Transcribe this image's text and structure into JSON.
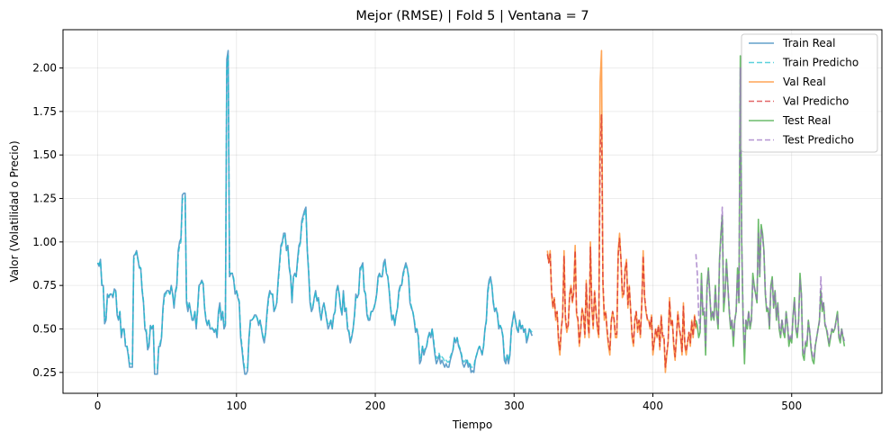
{
  "chart_data": {
    "type": "line",
    "title": "Mejor (RMSE) | Fold 5 | Ventana = 7",
    "xlabel": "Tiempo",
    "ylabel": "Valor (Volatilidad o Precio)",
    "xlim": [
      -25,
      565
    ],
    "ylim": [
      0.13,
      2.22
    ],
    "xticks": [
      0,
      100,
      200,
      300,
      400,
      500
    ],
    "yticks": [
      0.25,
      0.5,
      0.75,
      1.0,
      1.25,
      1.5,
      1.75,
      2.0
    ],
    "ytick_labels": [
      "0.25",
      "0.50",
      "0.75",
      "1.00",
      "1.25",
      "1.50",
      "1.75",
      "2.00"
    ],
    "grid": true,
    "legend_position": "top-right",
    "colors": {
      "train_real": "#1f77b4",
      "train_pred": "#17becf",
      "val_real": "#ff7f0e",
      "val_pred": "#d62728",
      "test_real": "#2ca02c",
      "test_pred": "#9467bd"
    },
    "series": [
      {
        "name": "Train Real",
        "style": "solid",
        "color": "#1f77b4",
        "x_start": 0,
        "values": [
          0.88,
          0.86,
          0.9,
          0.75,
          0.75,
          0.53,
          0.55,
          0.7,
          0.68,
          0.7,
          0.7,
          0.68,
          0.73,
          0.72,
          0.58,
          0.55,
          0.6,
          0.45,
          0.5,
          0.5,
          0.4,
          0.4,
          0.35,
          0.28,
          0.28,
          0.28,
          0.92,
          0.93,
          0.95,
          0.9,
          0.85,
          0.85,
          0.72,
          0.65,
          0.5,
          0.48,
          0.38,
          0.4,
          0.52,
          0.5,
          0.52,
          0.24,
          0.24,
          0.24,
          0.4,
          0.4,
          0.45,
          0.62,
          0.7,
          0.71,
          0.72,
          0.72,
          0.7,
          0.75,
          0.7,
          0.62,
          0.72,
          0.75,
          0.95,
          1.0,
          1.02,
          1.27,
          1.28,
          1.28,
          0.65,
          0.6,
          0.65,
          0.6,
          0.55,
          0.55,
          0.6,
          0.5,
          0.62,
          0.75,
          0.76,
          0.78,
          0.76,
          0.62,
          0.55,
          0.52,
          0.55,
          0.5,
          0.5,
          0.5,
          0.48,
          0.5,
          0.45,
          0.6,
          0.65,
          0.55,
          0.6,
          0.5,
          0.52,
          2.05,
          2.1,
          0.8,
          0.82,
          0.82,
          0.78,
          0.7,
          0.72,
          0.68,
          0.65,
          0.45,
          0.38,
          0.3,
          0.24,
          0.24,
          0.26,
          0.45,
          0.55,
          0.55,
          0.56,
          0.58,
          0.58,
          0.56,
          0.52,
          0.55,
          0.5,
          0.45,
          0.42,
          0.48,
          0.6,
          0.68,
          0.72,
          0.7,
          0.7,
          0.6,
          0.62,
          0.65,
          0.78,
          0.88,
          0.98,
          1.0,
          1.05,
          1.05,
          0.95,
          0.98,
          0.85,
          0.8,
          0.65,
          0.8,
          0.82,
          0.8,
          0.9,
          0.98,
          1.0,
          1.12,
          1.15,
          1.18,
          1.2,
          0.95,
          0.82,
          0.65,
          0.6,
          0.62,
          0.68,
          0.72,
          0.66,
          0.68,
          0.6,
          0.55,
          0.62,
          0.65,
          0.6,
          0.55,
          0.5,
          0.52,
          0.55,
          0.5,
          0.58,
          0.6,
          0.72,
          0.75,
          0.7,
          0.62,
          0.58,
          0.72,
          0.6,
          0.62,
          0.5,
          0.48,
          0.42,
          0.45,
          0.5,
          0.58,
          0.7,
          0.68,
          0.7,
          0.85,
          0.86,
          0.88,
          0.72,
          0.7,
          0.58,
          0.55,
          0.55,
          0.6,
          0.6,
          0.62,
          0.65,
          0.7,
          0.8,
          0.82,
          0.8,
          0.8,
          0.88,
          0.9,
          0.82,
          0.8,
          0.72,
          0.62,
          0.55,
          0.58,
          0.52,
          0.58,
          0.62,
          0.72,
          0.75,
          0.75,
          0.82,
          0.85,
          0.88,
          0.85,
          0.8,
          0.65,
          0.62,
          0.6,
          0.55,
          0.48,
          0.5,
          0.45,
          0.3,
          0.32,
          0.4,
          0.35,
          0.38,
          0.4,
          0.45,
          0.48,
          0.45,
          0.5,
          0.42,
          0.35,
          0.3,
          0.32,
          0.35,
          0.3,
          0.32,
          0.3,
          0.28,
          0.3,
          0.28,
          0.28,
          0.32,
          0.35,
          0.38,
          0.45,
          0.42,
          0.45,
          0.4,
          0.38,
          0.35,
          0.3,
          0.28,
          0.3,
          0.32,
          0.28,
          0.3,
          0.25,
          0.26,
          0.25,
          0.32,
          0.35,
          0.38,
          0.4,
          0.38,
          0.35,
          0.4,
          0.5,
          0.55,
          0.72,
          0.78,
          0.8,
          0.75,
          0.65,
          0.6,
          0.62,
          0.58,
          0.5,
          0.52,
          0.5,
          0.45,
          0.32,
          0.3,
          0.35,
          0.3,
          0.35,
          0.5,
          0.55,
          0.6,
          0.55,
          0.5,
          0.48,
          0.55,
          0.5,
          0.52,
          0.48,
          0.5,
          0.42,
          0.45,
          0.5,
          0.48,
          0.46
        ]
      },
      {
        "name": "Train Predicho",
        "style": "dashed",
        "color": "#17becf",
        "x_start": 0,
        "values": [
          0.88,
          0.87,
          0.89,
          0.76,
          0.74,
          0.55,
          0.56,
          0.69,
          0.69,
          0.7,
          0.7,
          0.69,
          0.72,
          0.72,
          0.6,
          0.56,
          0.6,
          0.47,
          0.5,
          0.5,
          0.42,
          0.41,
          0.36,
          0.3,
          0.3,
          0.3,
          0.9,
          0.92,
          0.94,
          0.9,
          0.86,
          0.85,
          0.73,
          0.66,
          0.52,
          0.5,
          0.4,
          0.42,
          0.52,
          0.51,
          0.52,
          0.27,
          0.27,
          0.27,
          0.4,
          0.42,
          0.46,
          0.6,
          0.68,
          0.7,
          0.71,
          0.72,
          0.7,
          0.74,
          0.7,
          0.64,
          0.7,
          0.74,
          0.92,
          0.98,
          1.0,
          1.24,
          1.26,
          1.26,
          0.68,
          0.62,
          0.64,
          0.6,
          0.56,
          0.56,
          0.6,
          0.52,
          0.6,
          0.74,
          0.75,
          0.77,
          0.76,
          0.63,
          0.56,
          0.53,
          0.55,
          0.51,
          0.51,
          0.5,
          0.49,
          0.5,
          0.47,
          0.58,
          0.63,
          0.56,
          0.6,
          0.52,
          0.53,
          2.0,
          2.07,
          0.82,
          0.82,
          0.82,
          0.79,
          0.72,
          0.72,
          0.69,
          0.66,
          0.47,
          0.4,
          0.32,
          0.27,
          0.27,
          0.28,
          0.44,
          0.53,
          0.55,
          0.56,
          0.57,
          0.58,
          0.56,
          0.53,
          0.55,
          0.51,
          0.46,
          0.44,
          0.48,
          0.58,
          0.66,
          0.71,
          0.7,
          0.7,
          0.61,
          0.62,
          0.65,
          0.76,
          0.86,
          0.96,
          0.99,
          1.03,
          1.04,
          0.96,
          0.97,
          0.86,
          0.81,
          0.67,
          0.79,
          0.81,
          0.8,
          0.88,
          0.96,
          0.99,
          1.1,
          1.13,
          1.16,
          1.18,
          0.96,
          0.84,
          0.67,
          0.62,
          0.63,
          0.67,
          0.71,
          0.67,
          0.68,
          0.61,
          0.56,
          0.61,
          0.64,
          0.61,
          0.56,
          0.52,
          0.53,
          0.55,
          0.51,
          0.57,
          0.6,
          0.7,
          0.74,
          0.7,
          0.63,
          0.59,
          0.7,
          0.61,
          0.62,
          0.52,
          0.49,
          0.44,
          0.46,
          0.5,
          0.57,
          0.68,
          0.68,
          0.7,
          0.83,
          0.85,
          0.87,
          0.73,
          0.7,
          0.6,
          0.56,
          0.56,
          0.6,
          0.6,
          0.62,
          0.65,
          0.7,
          0.78,
          0.81,
          0.8,
          0.8,
          0.86,
          0.88,
          0.83,
          0.8,
          0.73,
          0.63,
          0.56,
          0.58,
          0.53,
          0.58,
          0.62,
          0.7,
          0.74,
          0.75,
          0.8,
          0.84,
          0.86,
          0.85,
          0.8,
          0.67,
          0.63,
          0.6,
          0.56,
          0.5,
          0.5,
          0.46,
          0.33,
          0.34,
          0.4,
          0.37,
          0.39,
          0.4,
          0.45,
          0.47,
          0.46,
          0.5,
          0.44,
          0.37,
          0.33,
          0.34,
          0.36,
          0.33,
          0.34,
          0.33,
          0.31,
          0.32,
          0.31,
          0.31,
          0.34,
          0.36,
          0.38,
          0.44,
          0.43,
          0.45,
          0.41,
          0.39,
          0.36,
          0.32,
          0.31,
          0.32,
          0.33,
          0.3,
          0.31,
          0.28,
          0.28,
          0.28,
          0.33,
          0.35,
          0.38,
          0.4,
          0.39,
          0.36,
          0.4,
          0.49,
          0.54,
          0.7,
          0.76,
          0.78,
          0.75,
          0.66,
          0.61,
          0.62,
          0.59,
          0.51,
          0.52,
          0.5,
          0.46,
          0.34,
          0.32,
          0.35,
          0.32,
          0.36,
          0.48,
          0.54,
          0.58,
          0.55,
          0.51,
          0.49,
          0.54,
          0.51,
          0.52,
          0.49,
          0.5,
          0.44,
          0.46,
          0.5,
          0.49,
          0.48
        ]
      },
      {
        "name": "Val Real",
        "style": "solid",
        "color": "#ff7f0e",
        "x_start": 324,
        "values": [
          0.95,
          0.88,
          0.95,
          0.7,
          0.62,
          0.68,
          0.55,
          0.6,
          0.42,
          0.35,
          0.5,
          0.58,
          0.95,
          0.55,
          0.48,
          0.52,
          0.7,
          0.75,
          0.65,
          0.72,
          0.98,
          0.58,
          0.55,
          0.4,
          0.5,
          0.62,
          0.58,
          0.45,
          0.78,
          0.55,
          0.45,
          1.0,
          0.62,
          0.5,
          0.72,
          0.6,
          0.5,
          0.45,
          1.92,
          2.1,
          0.75,
          0.55,
          0.6,
          0.48,
          0.4,
          0.35,
          0.55,
          0.6,
          0.55,
          0.45,
          0.45,
          0.95,
          1.05,
          0.9,
          0.68,
          0.7,
          0.85,
          0.9,
          0.62,
          0.75,
          0.6,
          0.45,
          0.4,
          0.55,
          0.6,
          0.48,
          0.55,
          0.45,
          0.65,
          0.95,
          0.68,
          0.6,
          0.55,
          0.55,
          0.5,
          0.58,
          0.35,
          0.42,
          0.5,
          0.45,
          0.52,
          0.38,
          0.58,
          0.45,
          0.45,
          0.25,
          0.35,
          0.42,
          0.68,
          0.52,
          0.55,
          0.4,
          0.32,
          0.45,
          0.6,
          0.5,
          0.45,
          0.35,
          0.65,
          0.4,
          0.35,
          0.42,
          0.48,
          0.4,
          0.55,
          0.45,
          0.58,
          0.5
        ]
      },
      {
        "name": "Val Predicho",
        "style": "dashed",
        "color": "#d62728",
        "x_start": 324,
        "values": [
          0.93,
          0.88,
          0.93,
          0.72,
          0.63,
          0.67,
          0.57,
          0.6,
          0.45,
          0.38,
          0.5,
          0.57,
          0.92,
          0.57,
          0.5,
          0.52,
          0.69,
          0.74,
          0.66,
          0.71,
          0.95,
          0.6,
          0.56,
          0.42,
          0.5,
          0.61,
          0.58,
          0.47,
          0.76,
          0.56,
          0.47,
          0.97,
          0.63,
          0.52,
          0.71,
          0.6,
          0.52,
          0.47,
          1.5,
          1.73,
          0.78,
          0.58,
          0.6,
          0.5,
          0.42,
          0.38,
          0.54,
          0.6,
          0.56,
          0.47,
          0.47,
          0.92,
          1.02,
          0.9,
          0.7,
          0.7,
          0.84,
          0.88,
          0.64,
          0.74,
          0.61,
          0.47,
          0.42,
          0.55,
          0.6,
          0.5,
          0.55,
          0.47,
          0.64,
          0.92,
          0.69,
          0.61,
          0.56,
          0.55,
          0.51,
          0.57,
          0.38,
          0.43,
          0.5,
          0.46,
          0.52,
          0.4,
          0.57,
          0.46,
          0.46,
          0.28,
          0.36,
          0.43,
          0.66,
          0.53,
          0.55,
          0.42,
          0.34,
          0.46,
          0.59,
          0.51,
          0.46,
          0.37,
          0.63,
          0.42,
          0.37,
          0.43,
          0.48,
          0.42,
          0.54,
          0.46,
          0.57,
          0.51
        ]
      },
      {
        "name": "Test Real",
        "style": "solid",
        "color": "#2ca02c",
        "x_start": 431,
        "values": [
          0.55,
          0.52,
          0.45,
          0.48,
          0.82,
          0.58,
          0.6,
          0.35,
          0.75,
          0.85,
          0.7,
          0.55,
          0.6,
          0.55,
          0.75,
          0.58,
          0.5,
          0.9,
          1.05,
          1.15,
          0.6,
          0.7,
          0.9,
          0.75,
          0.6,
          0.5,
          0.55,
          0.4,
          0.55,
          0.6,
          0.85,
          0.65,
          2.07,
          1.0,
          0.55,
          0.3,
          0.55,
          0.5,
          0.6,
          0.5,
          0.55,
          0.82,
          0.75,
          0.7,
          0.65,
          1.13,
          0.8,
          1.1,
          1.05,
          0.95,
          0.7,
          0.6,
          0.62,
          0.5,
          0.75,
          0.8,
          0.62,
          0.72,
          0.55,
          0.65,
          0.5,
          0.45,
          0.55,
          0.48,
          0.45,
          0.6,
          0.52,
          0.4,
          0.45,
          0.42,
          0.58,
          0.68,
          0.5,
          0.45,
          0.55,
          0.82,
          0.7,
          0.35,
          0.32,
          0.42,
          0.4,
          0.55,
          0.48,
          0.38,
          0.32,
          0.3,
          0.4,
          0.45,
          0.5,
          0.55,
          0.72,
          0.6,
          0.65,
          0.52,
          0.5,
          0.45,
          0.4,
          0.45,
          0.5,
          0.48,
          0.5,
          0.55,
          0.6,
          0.45,
          0.42,
          0.5,
          0.45,
          0.4
        ]
      },
      {
        "name": "Test Predicho",
        "style": "dashed",
        "color": "#9467bd",
        "x_start": 431,
        "values": [
          0.93,
          0.82,
          0.58,
          0.5,
          0.78,
          0.6,
          0.62,
          0.4,
          0.72,
          0.83,
          0.7,
          0.57,
          0.6,
          0.56,
          0.73,
          0.6,
          0.52,
          0.88,
          1.02,
          1.2,
          0.65,
          0.7,
          0.88,
          0.75,
          0.62,
          0.52,
          0.55,
          0.45,
          0.55,
          0.6,
          0.82,
          0.66,
          2.0,
          1.0,
          0.58,
          0.38,
          0.55,
          0.52,
          0.6,
          0.52,
          0.55,
          0.78,
          0.74,
          0.7,
          0.66,
          1.05,
          0.82,
          1.07,
          1.03,
          0.94,
          0.72,
          0.62,
          0.62,
          0.52,
          0.73,
          0.78,
          0.63,
          0.71,
          0.57,
          0.64,
          0.52,
          0.47,
          0.55,
          0.5,
          0.47,
          0.59,
          0.53,
          0.43,
          0.46,
          0.44,
          0.57,
          0.66,
          0.52,
          0.47,
          0.55,
          0.78,
          0.69,
          0.38,
          0.35,
          0.43,
          0.42,
          0.54,
          0.49,
          0.4,
          0.35,
          0.33,
          0.41,
          0.45,
          0.5,
          0.54,
          0.8,
          0.62,
          0.65,
          0.53,
          0.51,
          0.47,
          0.42,
          0.46,
          0.5,
          0.49,
          0.5,
          0.54,
          0.58,
          0.47,
          0.44,
          0.5,
          0.46,
          0.43
        ]
      }
    ]
  }
}
